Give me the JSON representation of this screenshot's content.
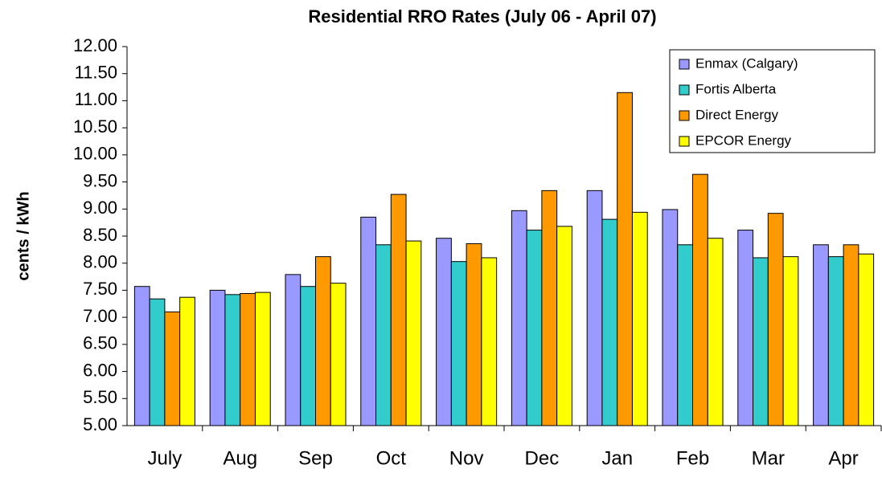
{
  "chart_data": {
    "type": "bar",
    "title": "Residential RRO Rates (July 06 - April 07)",
    "y_label": "cents / kWh",
    "categories": [
      "July",
      "Aug",
      "Sep",
      "Oct",
      "Nov",
      "Dec",
      "Jan",
      "Feb",
      "Mar",
      "Apr"
    ],
    "series": [
      {
        "name": "Enmax (Calgary)",
        "color": "#9999ff",
        "values": [
          7.57,
          7.5,
          7.79,
          8.85,
          8.46,
          8.97,
          9.34,
          8.99,
          8.61,
          8.34
        ]
      },
      {
        "name": "Fortis Alberta",
        "color": "#33cccc",
        "values": [
          7.34,
          7.42,
          7.57,
          8.34,
          8.03,
          8.61,
          8.81,
          8.34,
          8.1,
          8.12
        ]
      },
      {
        "name": "Direct Energy",
        "color": "#ff9900",
        "values": [
          7.1,
          7.44,
          8.12,
          9.27,
          8.36,
          9.34,
          11.15,
          9.64,
          8.92,
          8.34
        ]
      },
      {
        "name": "EPCOR Energy",
        "color": "#ffff00",
        "values": [
          7.37,
          7.46,
          7.63,
          8.41,
          8.1,
          8.68,
          8.94,
          8.46,
          8.12,
          8.17
        ]
      }
    ],
    "ylim": [
      5,
      12
    ],
    "yticks": [
      {
        "value": 5,
        "label": "5.00"
      },
      {
        "value": 5.5,
        "label": "5.50"
      },
      {
        "value": 6,
        "label": "6.00"
      },
      {
        "value": 6.5,
        "label": "6.50"
      },
      {
        "value": 7,
        "label": "7.00"
      },
      {
        "value": 7.5,
        "label": "7.50"
      },
      {
        "value": 8,
        "label": "8.00"
      },
      {
        "value": 8.5,
        "label": "8.50"
      },
      {
        "value": 9,
        "label": "9.00"
      },
      {
        "value": 9.5,
        "label": "9.50"
      },
      {
        "value": 10,
        "label": "10.00"
      },
      {
        "value": 10.5,
        "label": "10.50"
      },
      {
        "value": 11,
        "label": "11.00"
      },
      {
        "value": 11.5,
        "label": "11.50"
      },
      {
        "value": 12,
        "label": "12.00"
      }
    ],
    "grid": false,
    "legend": "top-right"
  }
}
